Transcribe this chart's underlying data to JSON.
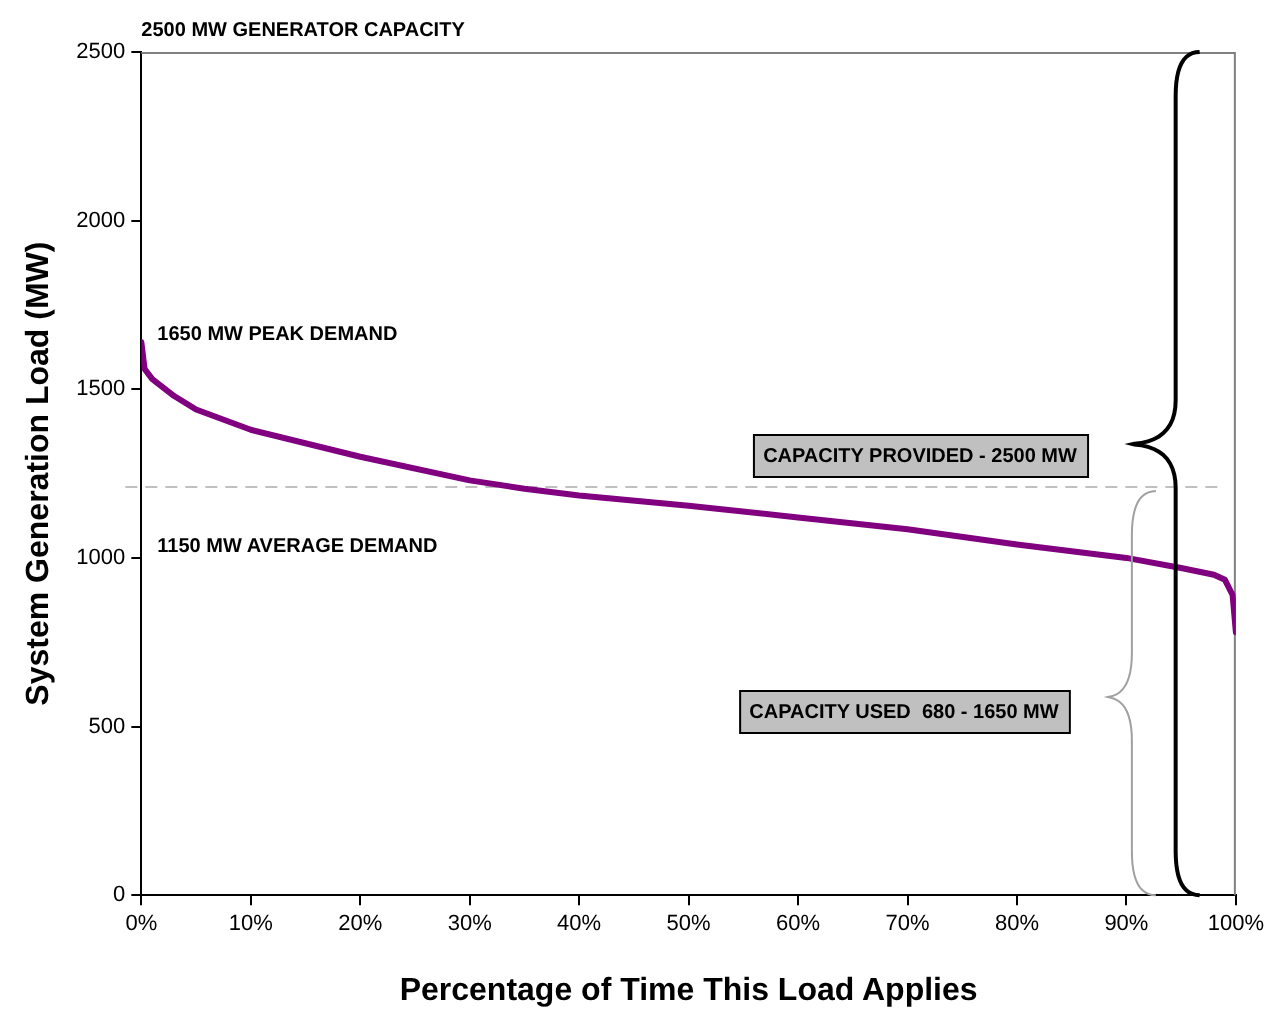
{
  "chart_data": {
    "type": "line",
    "title": "2500 MW GENERATOR CAPACITY",
    "xlabel": "Percentage of Time This Load Applies",
    "ylabel": "System Generation Load (MW)",
    "x": [
      0,
      0.3,
      1,
      3,
      5,
      10,
      20,
      30,
      35,
      40,
      50,
      60,
      70,
      80,
      90,
      95,
      98,
      99,
      99.7,
      100
    ],
    "series": [
      {
        "color": "#800080",
        "values": [
          1640,
          1560,
          1530,
          1480,
          1440,
          1380,
          1300,
          1230,
          1205,
          1185,
          1155,
          1120,
          1085,
          1040,
          1000,
          970,
          950,
          935,
          890,
          780
        ]
      }
    ],
    "xlim": [
      0,
      100
    ],
    "ylim": [
      0,
      2500
    ],
    "xticks": [
      {
        "value": 0,
        "label": "0%"
      },
      {
        "value": 10,
        "label": "10%"
      },
      {
        "value": 20,
        "label": "20%"
      },
      {
        "value": 30,
        "label": "30%"
      },
      {
        "value": 40,
        "label": "40%"
      },
      {
        "value": 50,
        "label": "50%"
      },
      {
        "value": 60,
        "label": "60%"
      },
      {
        "value": 70,
        "label": "70%"
      },
      {
        "value": 80,
        "label": "80%"
      },
      {
        "value": 90,
        "label": "90%"
      },
      {
        "value": 100,
        "label": "100%"
      }
    ],
    "yticks": [
      0,
      500,
      1000,
      1500,
      2000,
      2500
    ],
    "ref_lines": [
      {
        "axis": "y",
        "value": 1210,
        "color": "#c0c0c0",
        "line_style": "dashed"
      }
    ],
    "annotations": [
      {
        "text": "1650 MW PEAK DEMAND",
        "x": 0,
        "y": 1650
      },
      "1150 MW AVERAGE DEMAND",
      "CAPACITY PROVIDED - 2500 MW",
      "CAPACITY USED  680 - 1650 MW"
    ],
    "grid": false,
    "legend": false,
    "marker": "none",
    "line_style": "solid"
  }
}
